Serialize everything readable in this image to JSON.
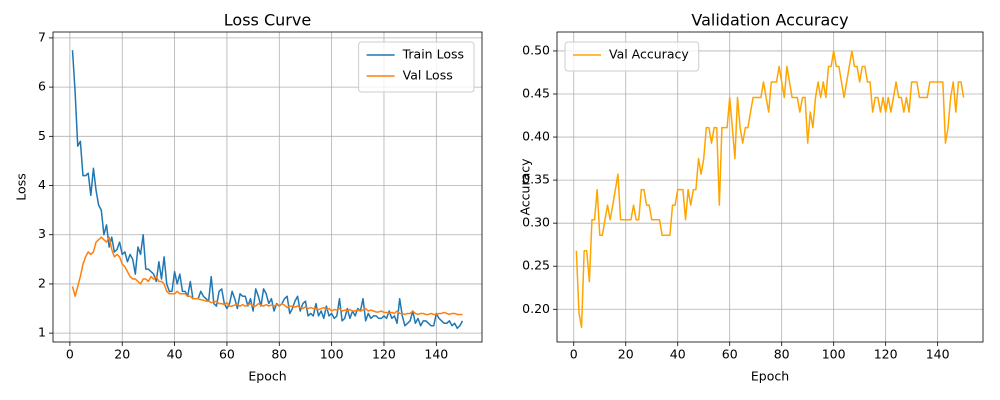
{
  "chart_data": [
    {
      "type": "line",
      "title": "Loss Curve",
      "x_label": "Epoch",
      "y_label": "Loss",
      "x": [
        1,
        2,
        3,
        4,
        5,
        6,
        7,
        8,
        9,
        10,
        11,
        12,
        13,
        14,
        15,
        16,
        17,
        18,
        19,
        20,
        21,
        22,
        23,
        24,
        25,
        26,
        27,
        28,
        29,
        30,
        31,
        32,
        33,
        34,
        35,
        36,
        37,
        38,
        39,
        40,
        41,
        42,
        43,
        44,
        45,
        46,
        47,
        48,
        49,
        50,
        51,
        52,
        53,
        54,
        55,
        56,
        57,
        58,
        59,
        60,
        61,
        62,
        63,
        64,
        65,
        66,
        67,
        68,
        69,
        70,
        71,
        72,
        73,
        74,
        75,
        76,
        77,
        78,
        79,
        80,
        81,
        82,
        83,
        84,
        85,
        86,
        87,
        88,
        89,
        90,
        91,
        92,
        93,
        94,
        95,
        96,
        97,
        98,
        99,
        100,
        101,
        102,
        103,
        104,
        105,
        106,
        107,
        108,
        109,
        110,
        111,
        112,
        113,
        114,
        115,
        116,
        117,
        118,
        119,
        120,
        121,
        122,
        123,
        124,
        125,
        126,
        127,
        128,
        129,
        130,
        131,
        132,
        133,
        134,
        135,
        136,
        137,
        138,
        139,
        140,
        141,
        142,
        143,
        144,
        145,
        146,
        147,
        148,
        149,
        150
      ],
      "series": [
        {
          "name": "Train Loss",
          "color": "#1f77b4",
          "values": [
            6.75,
            5.9,
            4.8,
            4.9,
            4.2,
            4.2,
            4.25,
            3.8,
            4.35,
            3.9,
            3.6,
            3.5,
            3.0,
            3.2,
            2.75,
            2.95,
            2.65,
            2.7,
            2.85,
            2.6,
            2.65,
            2.45,
            2.6,
            2.5,
            2.2,
            2.75,
            2.6,
            3.0,
            2.3,
            2.3,
            2.25,
            2.2,
            2.05,
            2.45,
            2.1,
            2.55,
            2.0,
            1.85,
            1.85,
            2.25,
            2.0,
            2.2,
            1.85,
            1.85,
            1.75,
            2.05,
            1.7,
            1.7,
            1.7,
            1.85,
            1.75,
            1.7,
            1.65,
            2.15,
            1.6,
            1.55,
            1.85,
            1.9,
            1.6,
            1.5,
            1.6,
            1.85,
            1.7,
            1.5,
            1.8,
            1.75,
            1.75,
            1.55,
            1.7,
            1.45,
            1.9,
            1.75,
            1.55,
            1.9,
            1.8,
            1.6,
            1.7,
            1.45,
            1.6,
            1.55,
            1.6,
            1.7,
            1.75,
            1.4,
            1.5,
            1.65,
            1.75,
            1.45,
            1.6,
            1.65,
            1.35,
            1.4,
            1.35,
            1.6,
            1.35,
            1.45,
            1.3,
            1.55,
            1.35,
            1.4,
            1.3,
            1.35,
            1.7,
            1.25,
            1.3,
            1.5,
            1.3,
            1.45,
            1.35,
            1.5,
            1.45,
            1.7,
            1.25,
            1.4,
            1.3,
            1.35,
            1.35,
            1.3,
            1.3,
            1.35,
            1.3,
            1.45,
            1.3,
            1.35,
            1.2,
            1.7,
            1.35,
            1.15,
            1.2,
            1.25,
            1.45,
            1.2,
            1.3,
            1.15,
            1.25,
            1.25,
            1.2,
            1.15,
            1.15,
            1.4,
            1.3,
            1.25,
            1.2,
            1.2,
            1.25,
            1.15,
            1.2,
            1.1,
            1.15,
            1.25
          ]
        },
        {
          "name": "Val Loss",
          "color": "#ff7f0e",
          "values": [
            1.95,
            1.75,
            1.95,
            2.15,
            2.4,
            2.55,
            2.65,
            2.6,
            2.65,
            2.85,
            2.9,
            2.95,
            2.9,
            2.85,
            2.95,
            2.7,
            2.55,
            2.6,
            2.55,
            2.4,
            2.35,
            2.25,
            2.15,
            2.1,
            2.1,
            2.05,
            2.0,
            2.1,
            2.1,
            2.05,
            2.15,
            2.1,
            2.15,
            2.05,
            2.05,
            2.0,
            1.85,
            1.8,
            1.8,
            1.8,
            1.85,
            1.8,
            1.8,
            1.8,
            1.75,
            1.75,
            1.7,
            1.7,
            1.7,
            1.68,
            1.67,
            1.65,
            1.65,
            1.62,
            1.63,
            1.65,
            1.6,
            1.6,
            1.58,
            1.62,
            1.55,
            1.55,
            1.57,
            1.58,
            1.55,
            1.58,
            1.55,
            1.57,
            1.6,
            1.55,
            1.55,
            1.6,
            1.57,
            1.55,
            1.58,
            1.55,
            1.57,
            1.55,
            1.58,
            1.55,
            1.6,
            1.57,
            1.52,
            1.55,
            1.55,
            1.53,
            1.55,
            1.52,
            1.5,
            1.53,
            1.5,
            1.52,
            1.5,
            1.5,
            1.48,
            1.5,
            1.52,
            1.48,
            1.5,
            1.45,
            1.48,
            1.47,
            1.5,
            1.45,
            1.47,
            1.45,
            1.48,
            1.45,
            1.45,
            1.47,
            1.45,
            1.47,
            1.5,
            1.45,
            1.47,
            1.45,
            1.43,
            1.43,
            1.45,
            1.42,
            1.42,
            1.4,
            1.42,
            1.4,
            1.45,
            1.4,
            1.4,
            1.38,
            1.4,
            1.4,
            1.45,
            1.4,
            1.38,
            1.4,
            1.4,
            1.38,
            1.38,
            1.4,
            1.38,
            1.38,
            1.4,
            1.4,
            1.42,
            1.4,
            1.38,
            1.4,
            1.4,
            1.38,
            1.38,
            1.38
          ]
        }
      ],
      "xlim": [
        -6.45,
        157.45
      ],
      "ylim": [
        0.82,
        7.12
      ],
      "xticks": [
        0,
        20,
        40,
        60,
        80,
        100,
        120,
        140
      ],
      "yticks": [
        1,
        2,
        3,
        4,
        5,
        6,
        7
      ],
      "grid": true,
      "legend": "upper right"
    },
    {
      "type": "line",
      "title": "Validation Accuracy",
      "x_label": "Epoch",
      "y_label": "Accuracy",
      "x": [
        1,
        2,
        3,
        4,
        5,
        6,
        7,
        8,
        9,
        10,
        11,
        12,
        13,
        14,
        15,
        16,
        17,
        18,
        19,
        20,
        21,
        22,
        23,
        24,
        25,
        26,
        27,
        28,
        29,
        30,
        31,
        32,
        33,
        34,
        35,
        36,
        37,
        38,
        39,
        40,
        41,
        42,
        43,
        44,
        45,
        46,
        47,
        48,
        49,
        50,
        51,
        52,
        53,
        54,
        55,
        56,
        57,
        58,
        59,
        60,
        61,
        62,
        63,
        64,
        65,
        66,
        67,
        68,
        69,
        70,
        71,
        72,
        73,
        74,
        75,
        76,
        77,
        78,
        79,
        80,
        81,
        82,
        83,
        84,
        85,
        86,
        87,
        88,
        89,
        90,
        91,
        92,
        93,
        94,
        95,
        96,
        97,
        98,
        99,
        100,
        101,
        102,
        103,
        104,
        105,
        106,
        107,
        108,
        109,
        110,
        111,
        112,
        113,
        114,
        115,
        116,
        117,
        118,
        119,
        120,
        121,
        122,
        123,
        124,
        125,
        126,
        127,
        128,
        129,
        130,
        131,
        132,
        133,
        134,
        135,
        136,
        137,
        138,
        139,
        140,
        141,
        142,
        143,
        144,
        145,
        146,
        147,
        148,
        149,
        150
      ],
      "series": [
        {
          "name": "Val Accuracy",
          "color": "#ffa500",
          "values": [
            0.268,
            0.196,
            0.179,
            0.268,
            0.268,
            0.232,
            0.304,
            0.304,
            0.339,
            0.286,
            0.286,
            0.304,
            0.321,
            0.304,
            0.321,
            0.339,
            0.357,
            0.304,
            0.304,
            0.304,
            0.304,
            0.304,
            0.321,
            0.304,
            0.304,
            0.339,
            0.339,
            0.321,
            0.321,
            0.304,
            0.304,
            0.304,
            0.304,
            0.286,
            0.286,
            0.286,
            0.286,
            0.321,
            0.321,
            0.339,
            0.339,
            0.339,
            0.304,
            0.339,
            0.321,
            0.339,
            0.339,
            0.375,
            0.357,
            0.375,
            0.411,
            0.411,
            0.393,
            0.411,
            0.411,
            0.321,
            0.411,
            0.411,
            0.411,
            0.446,
            0.411,
            0.375,
            0.446,
            0.411,
            0.393,
            0.411,
            0.411,
            0.429,
            0.446,
            0.446,
            0.446,
            0.446,
            0.464,
            0.446,
            0.429,
            0.464,
            0.464,
            0.464,
            0.482,
            0.464,
            0.446,
            0.482,
            0.464,
            0.446,
            0.446,
            0.446,
            0.429,
            0.446,
            0.446,
            0.393,
            0.429,
            0.411,
            0.446,
            0.464,
            0.446,
            0.464,
            0.446,
            0.482,
            0.482,
            0.5,
            0.482,
            0.482,
            0.464,
            0.446,
            0.464,
            0.482,
            0.5,
            0.482,
            0.482,
            0.464,
            0.482,
            0.482,
            0.464,
            0.464,
            0.429,
            0.446,
            0.446,
            0.429,
            0.446,
            0.429,
            0.446,
            0.429,
            0.446,
            0.464,
            0.446,
            0.446,
            0.429,
            0.446,
            0.429,
            0.464,
            0.464,
            0.464,
            0.446,
            0.446,
            0.446,
            0.446,
            0.464,
            0.464,
            0.464,
            0.464,
            0.464,
            0.464,
            0.393,
            0.411,
            0.446,
            0.464,
            0.429,
            0.464,
            0.464,
            0.446
          ]
        }
      ],
      "xlim": [
        -6.45,
        157.45
      ],
      "ylim": [
        0.162,
        0.522
      ],
      "xticks": [
        0,
        20,
        40,
        60,
        80,
        100,
        120,
        140
      ],
      "yticks": [
        {
          "value": 0.2,
          "label": "0.20"
        },
        0.25,
        {
          "value": 0.3,
          "label": "0.30"
        },
        0.35,
        {
          "value": 0.4,
          "label": "0.40"
        },
        0.45,
        {
          "value": 0.5,
          "label": "0.50"
        }
      ],
      "grid": true,
      "legend": "upper left"
    }
  ]
}
